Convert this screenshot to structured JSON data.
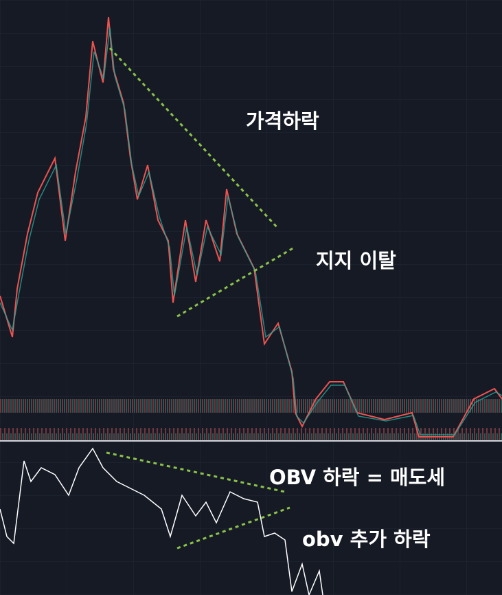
{
  "annotations": {
    "price_drop": "가격하락",
    "support_break": "지지 이탈",
    "obv_drop": "OBV 하락 = 매도세",
    "obv_further_drop": "obv 추가 하락"
  }
}
